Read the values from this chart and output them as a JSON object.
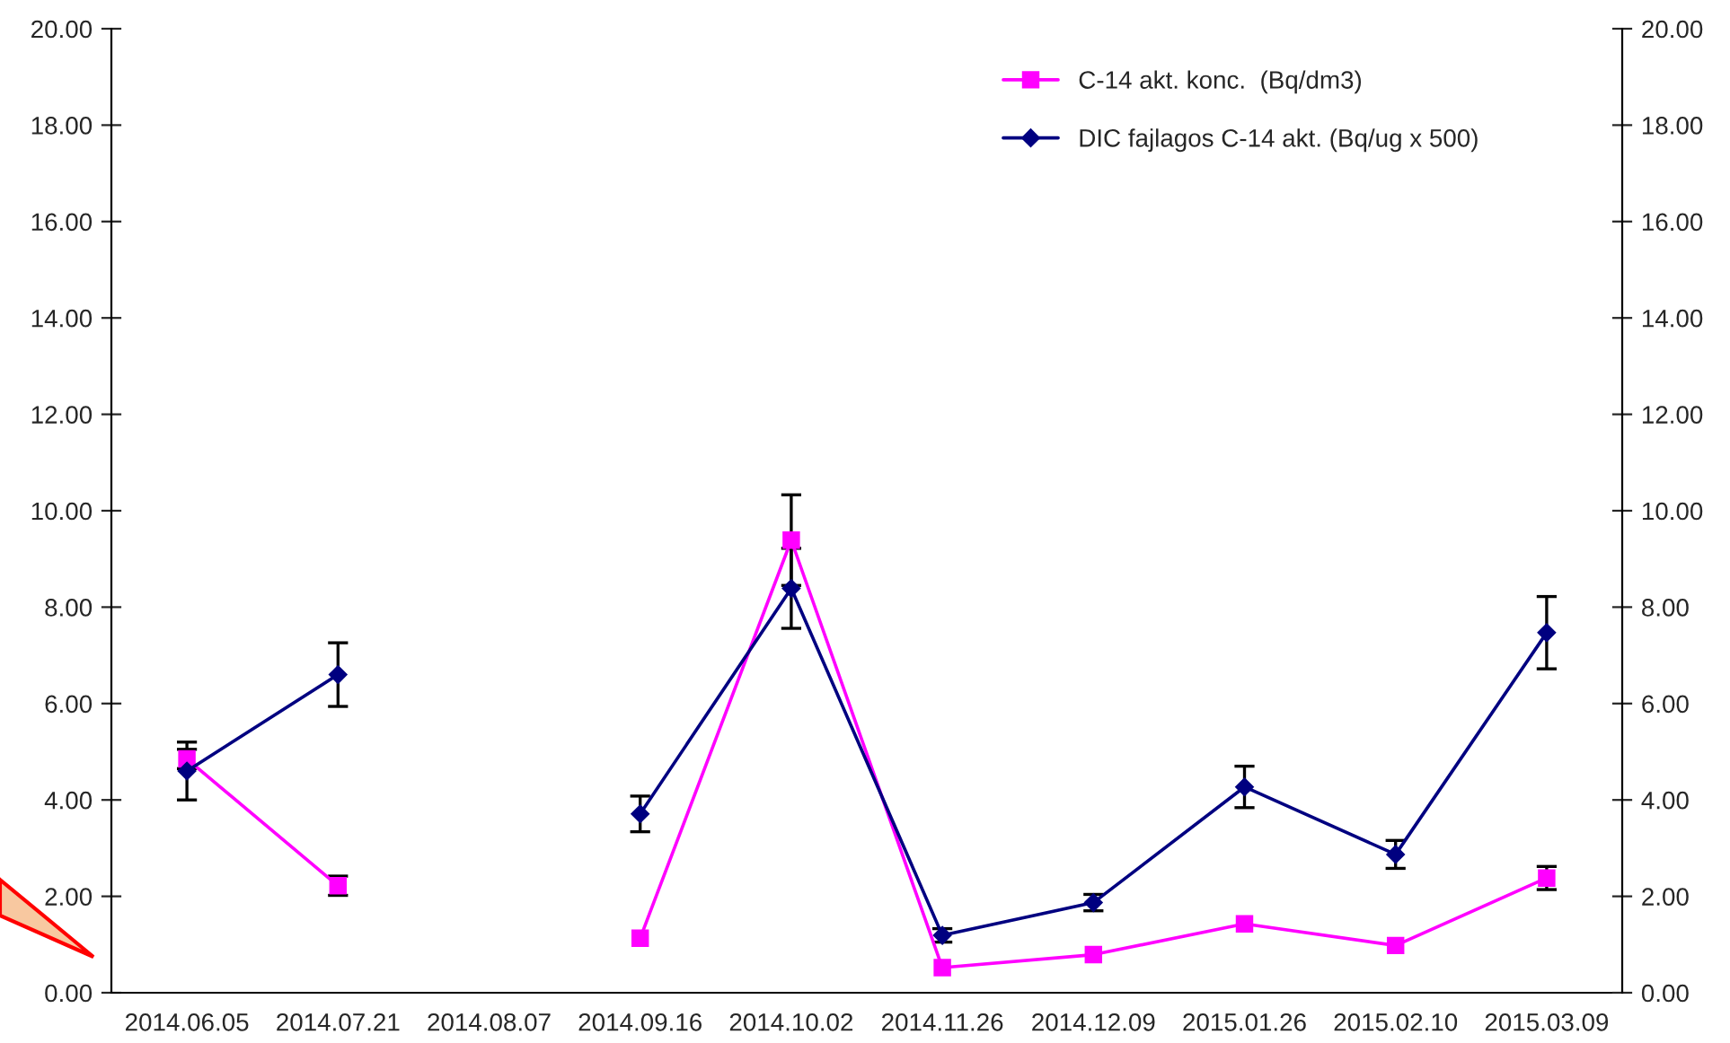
{
  "chart_data": {
    "type": "line",
    "categories": [
      "2014.06.05",
      "2014.07.21",
      "2014.08.07",
      "2014.09.16",
      "2014.10.02",
      "2014.11.26",
      "2014.12.09",
      "2015.01.26",
      "2015.02.10",
      "2015.03.09"
    ],
    "series": [
      {
        "name": "C-14 akt. konc.  (Bq/dm3)",
        "color": "#ff00ff",
        "marker": "square",
        "values": [
          4.85,
          2.22,
          null,
          1.13,
          9.39,
          0.52,
          0.79,
          1.43,
          0.98,
          2.38
        ],
        "errors": [
          0.2,
          0.2,
          null,
          null,
          0.94,
          null,
          null,
          null,
          null,
          0.24
        ]
      },
      {
        "name": "DIC fajlagos C-14 akt. (Bq/ug x 500)",
        "color": "#000080",
        "marker": "diamond",
        "values": [
          4.6,
          6.6,
          null,
          3.71,
          8.39,
          1.19,
          1.87,
          4.27,
          2.87,
          7.47
        ],
        "errors": [
          0.6,
          0.66,
          null,
          0.37,
          0.83,
          0.14,
          0.17,
          0.43,
          0.29,
          0.75
        ]
      }
    ],
    "ylim": [
      0,
      20
    ],
    "yticks": [
      {
        "value": 0,
        "label": "0.00"
      },
      {
        "value": 2,
        "label": "2.00"
      },
      {
        "value": 4,
        "label": "4.00"
      },
      {
        "value": 6,
        "label": "6.00"
      },
      {
        "value": 8,
        "label": "8.00"
      },
      {
        "value": 10,
        "label": "10.00"
      },
      {
        "value": 12,
        "label": "12.00"
      },
      {
        "value": 14,
        "label": "14.00"
      },
      {
        "value": 16,
        "label": "16.00"
      },
      {
        "value": 18,
        "label": "18.00"
      },
      {
        "value": 20,
        "label": "20.00"
      }
    ],
    "y2lim": [
      0,
      20
    ],
    "y2ticks": [
      {
        "value": 0,
        "label": "0.00"
      },
      {
        "value": 2,
        "label": "2.00"
      },
      {
        "value": 4,
        "label": "4.00"
      },
      {
        "value": 6,
        "label": "6.00"
      },
      {
        "value": 8,
        "label": "8.00"
      },
      {
        "value": 10,
        "label": "10.00"
      },
      {
        "value": 12,
        "label": "12.00"
      },
      {
        "value": 14,
        "label": "14.00"
      },
      {
        "value": 16,
        "label": "16.00"
      },
      {
        "value": 18,
        "label": "18.00"
      },
      {
        "value": 20,
        "label": "20.00"
      }
    ],
    "grid": false,
    "legend": "top right"
  }
}
